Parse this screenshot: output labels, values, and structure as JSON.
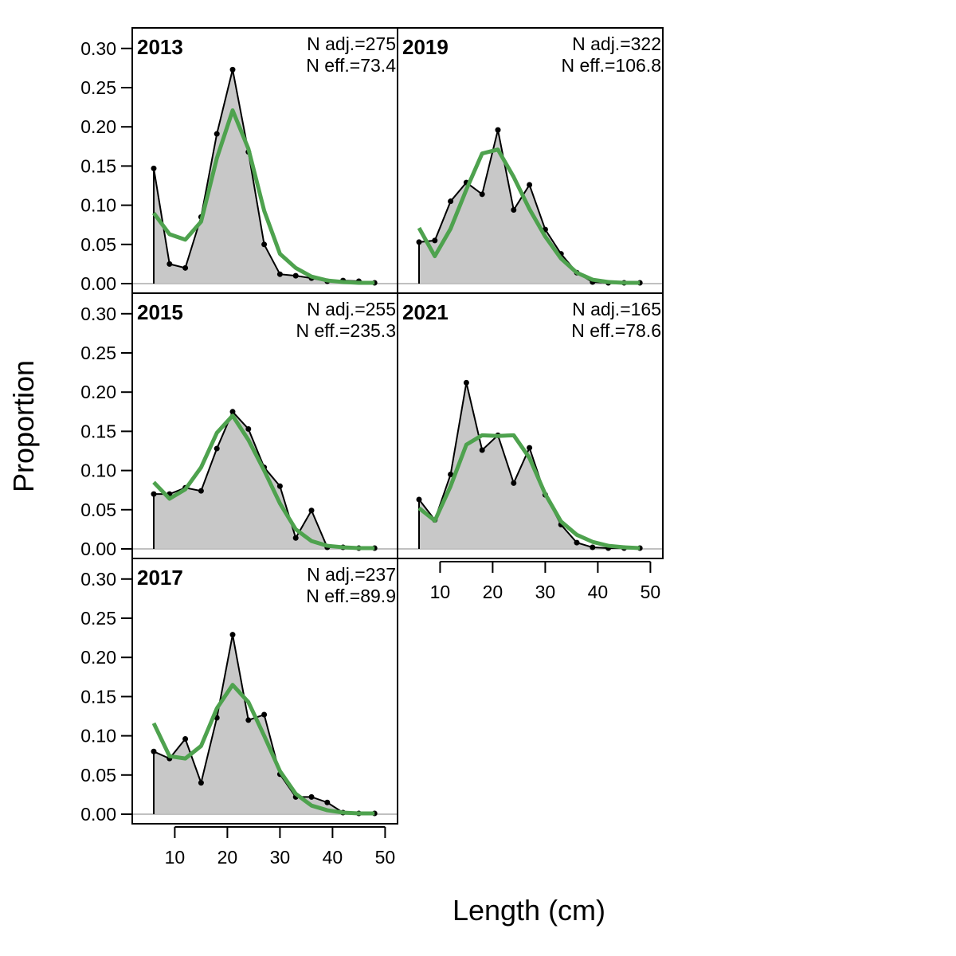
{
  "chart_data": {
    "type": "line",
    "xlabel": "Length (cm)",
    "ylabel": "Proportion",
    "xlim": [
      2,
      52
    ],
    "ylim": [
      0,
      0.33
    ],
    "x_ticks": [
      10,
      20,
      30,
      40,
      50
    ],
    "y_ticks": [
      "0.00",
      "0.05",
      "0.10",
      "0.15",
      "0.20",
      "0.25",
      "0.30"
    ],
    "x": [
      6,
      9,
      12,
      15,
      18,
      21,
      24,
      27,
      30,
      33,
      36,
      39,
      42,
      45,
      48
    ],
    "colors": {
      "observed": "#000000",
      "fill": "#c8c8c8",
      "expected": "#4ea24e"
    },
    "panels": [
      {
        "year": "2013",
        "n_adj": "N adj.=275",
        "n_eff": "N eff.=73.4",
        "observed": [
          0.147,
          0.025,
          0.02,
          0.085,
          0.191,
          0.273,
          0.168,
          0.05,
          0.012,
          0.01,
          0.007,
          0.003,
          0.004,
          0.003,
          0.001
        ],
        "expected": [
          0.09,
          0.063,
          0.056,
          0.079,
          0.16,
          0.221,
          0.172,
          0.093,
          0.038,
          0.02,
          0.009,
          0.004,
          0.002,
          0.001,
          0.001
        ]
      },
      {
        "year": "2015",
        "n_adj": "N adj.=255",
        "n_eff": "N eff.=235.3",
        "observed": [
          0.07,
          0.07,
          0.078,
          0.074,
          0.128,
          0.175,
          0.153,
          0.104,
          0.08,
          0.014,
          0.049,
          0.002,
          0.002,
          0.001,
          0.001
        ],
        "expected": [
          0.085,
          0.064,
          0.076,
          0.104,
          0.148,
          0.17,
          0.139,
          0.1,
          0.058,
          0.025,
          0.01,
          0.004,
          0.002,
          0.001,
          0.001
        ]
      },
      {
        "year": "2017",
        "n_adj": "N adj.=237",
        "n_eff": "N eff.=89.9",
        "observed": [
          0.08,
          0.071,
          0.096,
          0.04,
          0.123,
          0.229,
          0.12,
          0.127,
          0.051,
          0.022,
          0.022,
          0.015,
          0.002,
          0.001,
          0.001
        ],
        "expected": [
          0.116,
          0.074,
          0.071,
          0.087,
          0.135,
          0.165,
          0.143,
          0.1,
          0.055,
          0.026,
          0.011,
          0.005,
          0.002,
          0.001,
          0.001
        ]
      },
      {
        "year": "2019",
        "n_adj": "N adj.=322",
        "n_eff": "N eff.=106.8",
        "observed": [
          0.053,
          0.055,
          0.105,
          0.129,
          0.114,
          0.196,
          0.094,
          0.126,
          0.069,
          0.038,
          0.014,
          0.002,
          0.001,
          0.001,
          0.001
        ],
        "expected": [
          0.071,
          0.035,
          0.07,
          0.12,
          0.166,
          0.171,
          0.136,
          0.095,
          0.06,
          0.032,
          0.014,
          0.005,
          0.002,
          0.001,
          0.001
        ]
      },
      {
        "year": "2021",
        "n_adj": "N adj.=165",
        "n_eff": "N eff.=78.6",
        "observed": [
          0.063,
          0.037,
          0.095,
          0.212,
          0.126,
          0.145,
          0.084,
          0.129,
          0.069,
          0.031,
          0.008,
          0.002,
          0.001,
          0.001,
          0.001
        ],
        "expected": [
          0.052,
          0.036,
          0.08,
          0.133,
          0.145,
          0.144,
          0.145,
          0.116,
          0.07,
          0.035,
          0.018,
          0.009,
          0.004,
          0.002,
          0.001
        ]
      }
    ]
  }
}
